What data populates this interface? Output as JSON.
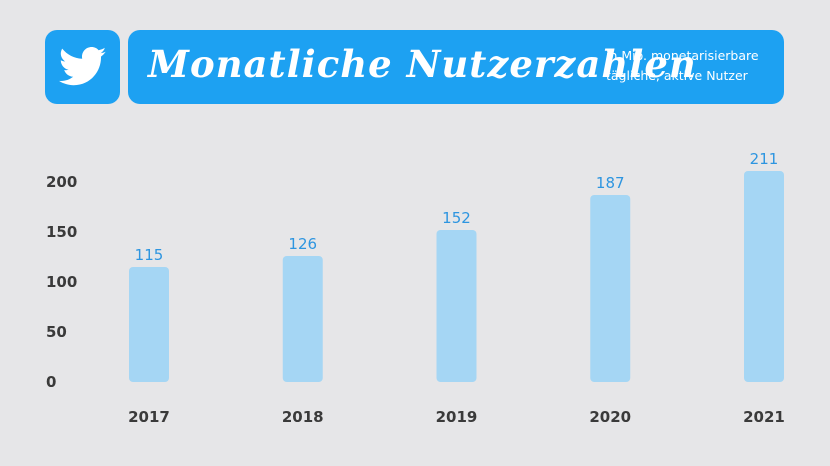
{
  "header": {
    "title": "Monatliche Nutzerzahlen",
    "subtitle_line1": "in Mio. monetarisierbare",
    "subtitle_line2": "tägliche, aktive Nutzer",
    "logo_icon": "twitter-bird-icon"
  },
  "colors": {
    "accent": "#1da1f2",
    "bar": "#a5d6f4",
    "data_label": "#2d95e0",
    "background": "#e6e6e8"
  },
  "chart_data": {
    "type": "bar",
    "categories": [
      "2017",
      "2018",
      "2019",
      "2020",
      "2021"
    ],
    "values": [
      115,
      126,
      152,
      187,
      211
    ],
    "data_labels": [
      "115",
      "126",
      "152",
      "187",
      "211"
    ],
    "yticks": [
      0,
      50,
      100,
      150,
      200
    ],
    "ylim": [
      0,
      211
    ],
    "grid": false,
    "legend": "none"
  }
}
